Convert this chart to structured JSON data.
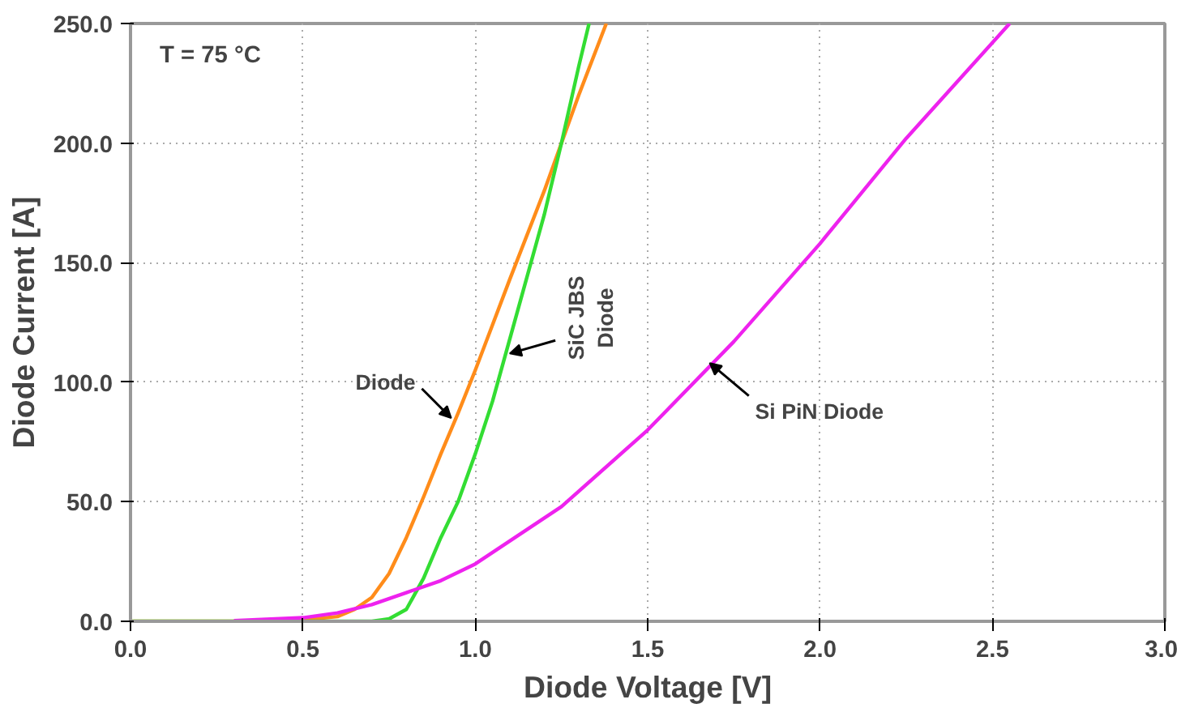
{
  "chart_data": {
    "type": "line",
    "xlabel": "Diode Voltage [V]",
    "ylabel": "Diode Current [A]",
    "xlim": [
      0,
      3.0
    ],
    "ylim": [
      0,
      250
    ],
    "xticks": [
      {
        "value": 0,
        "label": "0.0"
      },
      0.5,
      {
        "value": 1,
        "label": "1.0"
      },
      1.5,
      {
        "value": 2,
        "label": "2.0"
      },
      2.5,
      {
        "value": 3,
        "label": "3.0"
      }
    ],
    "yticks": [
      {
        "value": 0,
        "label": "0.0"
      },
      {
        "value": 50,
        "label": "50.0"
      },
      {
        "value": 100,
        "label": "100.0"
      },
      {
        "value": 150,
        "label": "150.0"
      },
      {
        "value": 200,
        "label": "200.0"
      },
      {
        "value": 250,
        "label": "250.0"
      }
    ],
    "grid": true,
    "line_style": "solid",
    "marker": "none",
    "series": [
      {
        "color": "#ff8c1a",
        "x": [
          0,
          0.3,
          0.5,
          0.6,
          0.65,
          0.7,
          0.75,
          0.8,
          0.85,
          0.9,
          0.95,
          1.0,
          1.05,
          1.1,
          1.2,
          1.3,
          1.38
        ],
        "values": [
          0,
          0,
          0.5,
          2,
          5,
          10,
          20,
          35,
          52,
          70,
          87,
          105,
          124,
          143,
          180,
          220,
          250
        ]
      },
      {
        "color": "#33dd33",
        "x": [
          0,
          0.5,
          0.7,
          0.75,
          0.8,
          0.85,
          0.9,
          0.95,
          1.0,
          1.05,
          1.1,
          1.15,
          1.2,
          1.25,
          1.3,
          1.33
        ],
        "values": [
          0,
          0,
          0,
          1,
          5,
          18,
          35,
          50,
          70,
          92,
          118,
          144,
          170,
          200,
          232,
          250
        ]
      },
      {
        "color": "#ee22ee",
        "x": [
          0.3,
          0.5,
          0.6,
          0.7,
          0.8,
          0.9,
          1.0,
          1.25,
          1.5,
          1.75,
          2.0,
          2.25,
          2.55
        ],
        "values": [
          0.3,
          1.5,
          3.5,
          7,
          12,
          17,
          24,
          48,
          80,
          117,
          158,
          202,
          250
        ]
      }
    ],
    "annotations": [
      "T = 75 °C",
      {
        "text": "Diode",
        "x": 0.93,
        "y": 85
      },
      {
        "text": "SiC JBS Diode",
        "x": 1.1,
        "y": 112
      },
      {
        "text": "Si PiN Diode",
        "x": 1.68,
        "y": 108
      }
    ]
  }
}
